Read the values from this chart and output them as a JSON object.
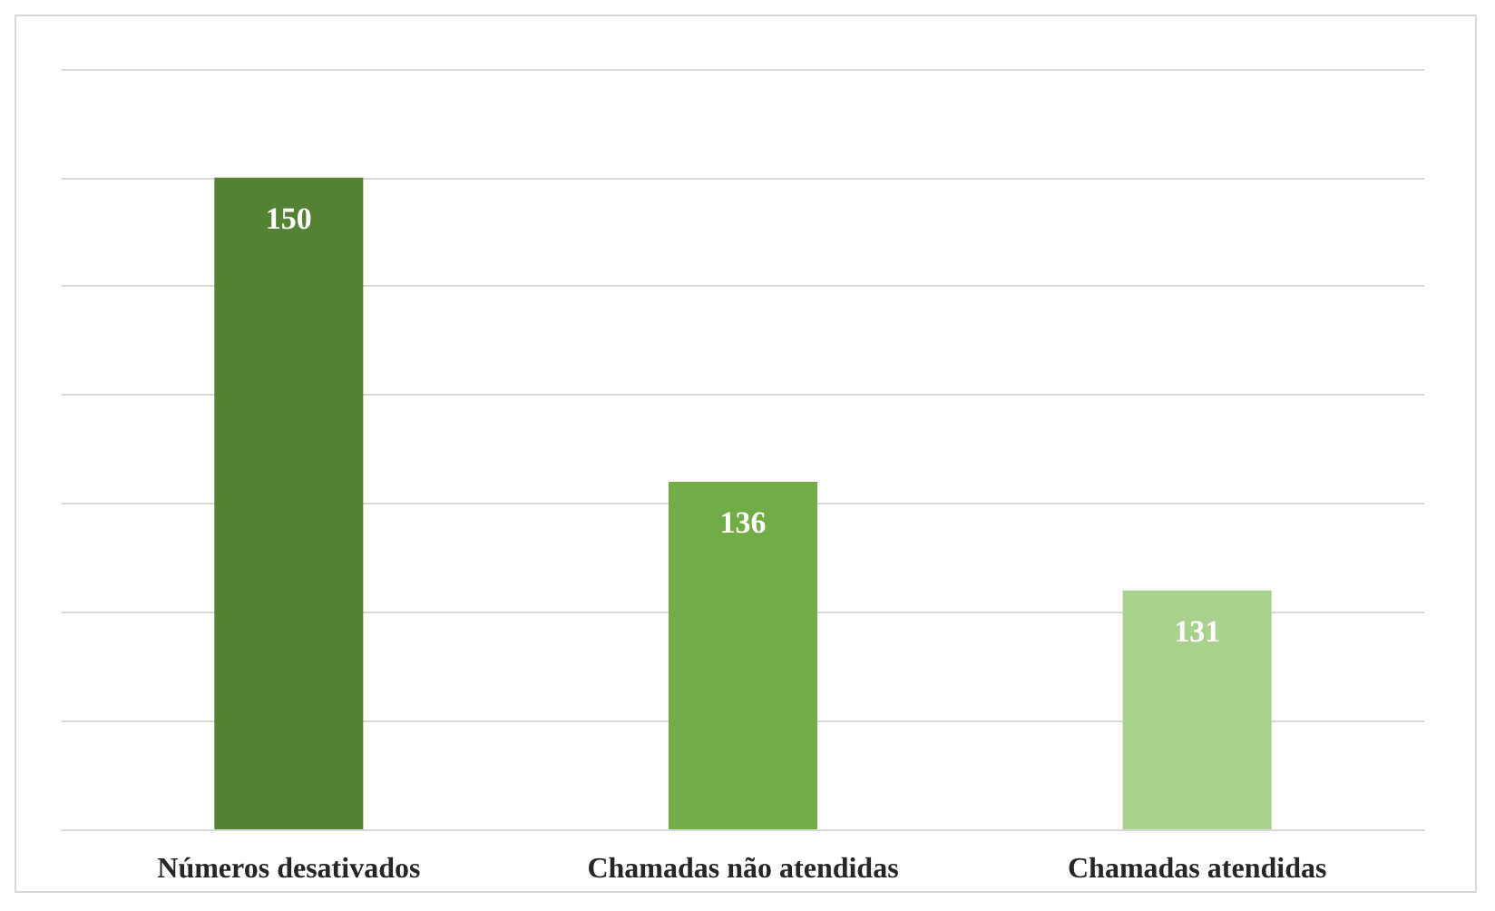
{
  "chart_data": {
    "type": "bar",
    "categories": [
      "Números desativados",
      "Chamadas não atendidas",
      "Chamadas atendidas"
    ],
    "values": [
      150,
      136,
      131
    ],
    "colors": [
      "#548235",
      "#70ad47",
      "#a9d18e"
    ],
    "ylim": [
      120,
      155
    ],
    "yticks": [
      {
        "value": 120,
        "label": null
      },
      {
        "value": 125,
        "label": null
      },
      {
        "value": 130,
        "label": null
      },
      {
        "value": 135,
        "label": null
      },
      {
        "value": 140,
        "label": null
      },
      {
        "value": 145,
        "label": null
      },
      {
        "value": 150,
        "label": null
      },
      {
        "value": 155,
        "label": null
      }
    ],
    "tick_labels": "x",
    "grid": "y",
    "data_labels": true
  }
}
